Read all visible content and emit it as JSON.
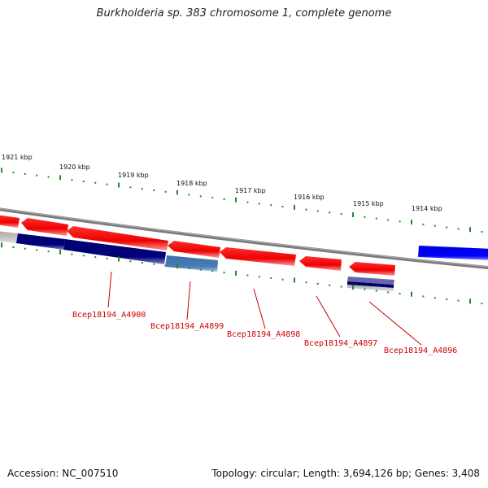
{
  "title": "Burkholderia sp. 383 chromosome 1, complete genome",
  "accession": "Accession: NC_007510",
  "summary": "Topology: circular; Length: 3,694,126 bp; Genes: 3,408",
  "kbp_ticks": [
    "1921 kbp",
    "1920 kbp",
    "1919 kbp",
    "1918 kbp",
    "1917 kbp",
    "1916 kbp",
    "1915 kbp",
    "1914 kbp"
  ],
  "gene_labels": [
    "Bcep18194_A4900",
    "Bcep18194_A4899",
    "Bcep18194_A4898",
    "Bcep18194_A4897",
    "Bcep18194_A4896"
  ],
  "colors": {
    "backbone": "#808080",
    "forward_gene": "#ff0000",
    "reverse_dark": "#000080",
    "reverse_steel": "#4a7eb5",
    "blue_feature": "#0000ff",
    "grey_feature": "#bbbbbb",
    "tick": "#228b22",
    "label": "#cc0000"
  }
}
